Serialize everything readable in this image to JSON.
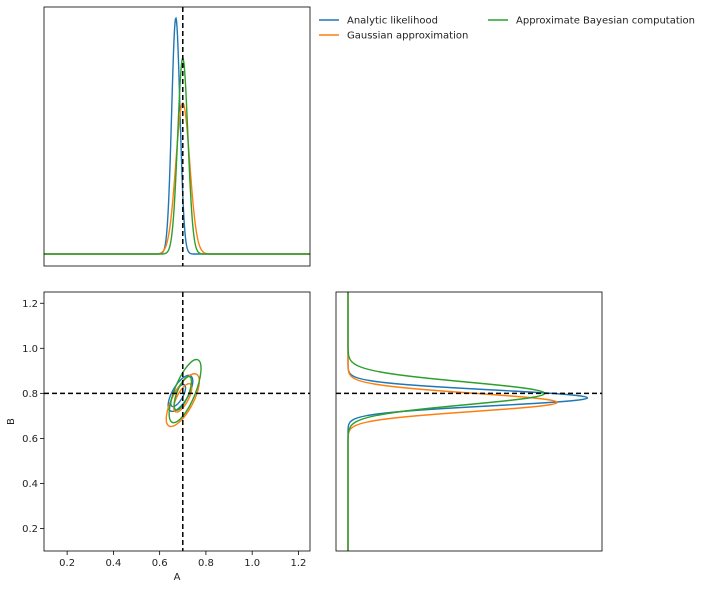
{
  "chart_data": {
    "type": "corner",
    "parameters": [
      "A",
      "B"
    ],
    "truth": {
      "A": 0.7,
      "B": 0.8
    },
    "series": [
      {
        "name": "Analytic likelihood",
        "color": "#1f77b4",
        "marginal_A": {
          "mean": 0.67,
          "sd": 0.018,
          "peak": 1.0
        },
        "marginal_B": {
          "mean": 0.78,
          "sd": 0.035,
          "peak": 0.95
        },
        "contours": [
          {
            "center": [
              0.69,
              0.8
            ],
            "semi_axes": [
              0.035,
              0.09
            ],
            "angle_deg": 30
          },
          {
            "center": [
              0.68,
              0.79
            ],
            "semi_axes": [
              0.02,
              0.055
            ],
            "angle_deg": 30
          }
        ]
      },
      {
        "name": "Gaussian approximation",
        "color": "#ff7f0e",
        "marginal_A": {
          "mean": 0.7,
          "sd": 0.03,
          "peak": 0.64
        },
        "marginal_B": {
          "mean": 0.76,
          "sd": 0.04,
          "peak": 0.83
        },
        "contours": [
          {
            "center": [
              0.7,
              0.77
            ],
            "semi_axes": [
              0.045,
              0.13
            ],
            "angle_deg": 28
          },
          {
            "center": [
              0.7,
              0.78
            ],
            "semi_axes": [
              0.025,
              0.07
            ],
            "angle_deg": 28
          }
        ]
      },
      {
        "name": "Approximate Bayesian computation",
        "color": "#2ca02c",
        "marginal_A": {
          "mean": 0.7,
          "sd": 0.022,
          "peak": 0.83
        },
        "marginal_B": {
          "mean": 0.8,
          "sd": 0.05,
          "peak": 0.78
        },
        "contours": [
          {
            "center": [
              0.71,
              0.81
            ],
            "semi_axes": [
              0.045,
              0.15
            ],
            "angle_deg": 22
          },
          {
            "center": [
              0.7,
              0.8
            ],
            "semi_axes": [
              0.025,
              0.08
            ],
            "angle_deg": 22
          }
        ]
      }
    ],
    "axes": {
      "A": {
        "label": "A",
        "lim": [
          0.1,
          1.25
        ],
        "ticks": [
          0.2,
          0.4,
          0.6,
          0.8,
          1.0,
          1.2
        ],
        "tick_labels": [
          "0.2",
          "0.4",
          "0.6",
          "0.8",
          "1.0",
          "1.2"
        ]
      },
      "B": {
        "label": "B",
        "lim": [
          0.1,
          1.25
        ],
        "ticks": [
          0.2,
          0.4,
          0.6,
          0.8,
          1.0,
          1.2
        ],
        "tick_labels": [
          "0.2",
          "0.4",
          "0.6",
          "0.8",
          "1.0",
          "1.2"
        ]
      }
    },
    "legend_placement": "top-right"
  }
}
